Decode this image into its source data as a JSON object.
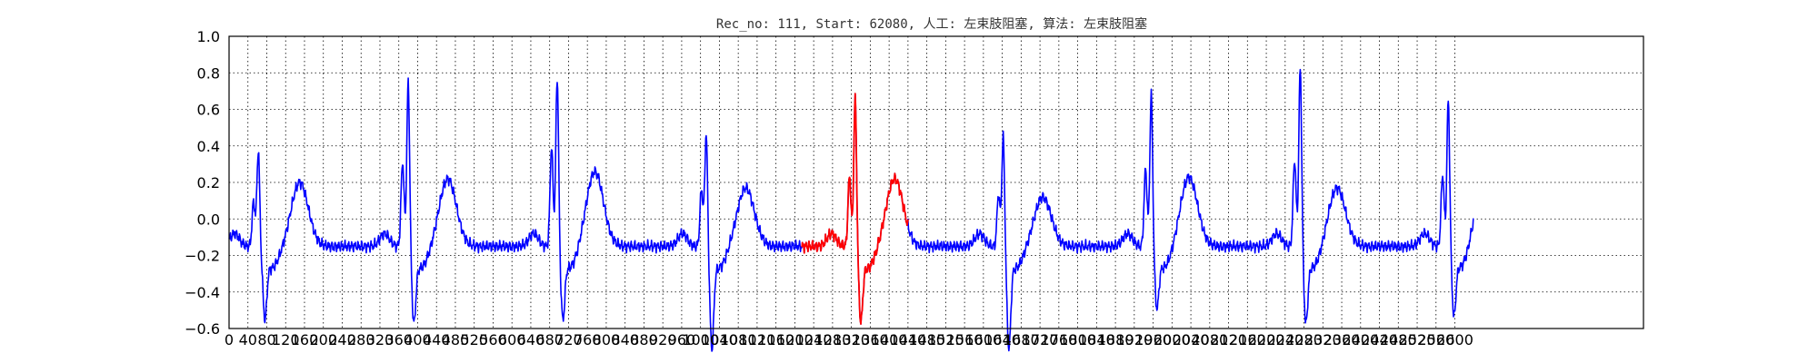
{
  "chart_data": {
    "type": "line",
    "title": "Rec_no: 111, Start: 62080, 人工: 左束肢阻塞, 算法: 左束肢阻塞",
    "xlabel": "",
    "ylabel": "",
    "xlim": [
      0,
      3000
    ],
    "ylim": [
      -0.6,
      1.0
    ],
    "grid": true,
    "yticks": [
      "1.0",
      "0.8",
      "0.6",
      "0.4",
      "0.2",
      "0.0",
      "−0.2",
      "−0.4",
      "−0.6"
    ],
    "xtick_labels": [
      "0",
      "40",
      "80",
      "120",
      "160",
      "200",
      "240",
      "280",
      "320",
      "360",
      "400",
      "440",
      "480",
      "520",
      "560",
      "600",
      "640",
      "680",
      "720",
      "760",
      "800",
      "840",
      "880",
      "920",
      "960",
      "1000",
      "1040",
      "1080",
      "1120",
      "1160",
      "1200",
      "1240",
      "1280",
      "1320",
      "1360",
      "1400",
      "1440",
      "1480",
      "1520",
      "1560",
      "1600",
      "1640",
      "1680",
      "1720",
      "1760",
      "1800",
      "1840",
      "1880",
      "1920",
      "1960",
      "2000",
      "2040",
      "2080",
      "2120",
      "2160",
      "2200",
      "2240",
      "2280",
      "2320",
      "2360",
      "2400",
      "2440",
      "2480",
      "2520",
      "2560",
      "2600"
    ],
    "series": [
      {
        "color": "#0000ff",
        "x_range": [
          0,
          2640
        ],
        "beats": [
          {
            "r": 62,
            "r_amp": 0.4,
            "q": 52,
            "q_amp": 0.1,
            "s": 76,
            "s_amp": -0.42,
            "t": 150,
            "t_amp": 0.23
          },
          {
            "r": 380,
            "r_amp": 0.78,
            "q": 368,
            "q_amp": 0.32,
            "s": 392,
            "s_amp": -0.44,
            "t": 464,
            "t_amp": 0.25
          },
          {
            "r": 696,
            "r_amp": 0.81,
            "q": 684,
            "q_amp": 0.4,
            "s": 708,
            "s_amp": -0.42,
            "t": 776,
            "t_amp": 0.29
          },
          {
            "r": 1012,
            "r_amp": 0.5,
            "q": 1002,
            "q_amp": 0.17,
            "s": 1024,
            "s_amp": -0.58,
            "t": 1096,
            "t_amp": 0.2
          },
          {
            "r": 1328,
            "r_amp": 0.69,
            "q": 1316,
            "q_amp": 0.24,
            "s": 1340,
            "s_amp": -0.43,
            "t": 1412,
            "t_amp": 0.25
          },
          {
            "r": 1642,
            "r_amp": 0.48,
            "q": 1632,
            "q_amp": 0.14,
            "s": 1654,
            "s_amp": -0.58,
            "t": 1726,
            "t_amp": 0.15
          },
          {
            "r": 1956,
            "r_amp": 0.71,
            "q": 1944,
            "q_amp": 0.28,
            "s": 1968,
            "s_amp": -0.36,
            "t": 2036,
            "t_amp": 0.26
          },
          {
            "r": 2272,
            "r_amp": 0.86,
            "q": 2260,
            "q_amp": 0.33,
            "s": 2284,
            "s_amp": -0.44,
            "t": 2350,
            "t_amp": 0.2
          },
          {
            "r": 2586,
            "r_amp": 0.68,
            "q": 2574,
            "q_amp": 0.25,
            "s": 2598,
            "s_amp": -0.4,
            "t": 2660,
            "t_amp": 0.2
          }
        ]
      },
      {
        "color": "#ff0000",
        "x_range": [
          1215,
          1440
        ]
      }
    ]
  }
}
